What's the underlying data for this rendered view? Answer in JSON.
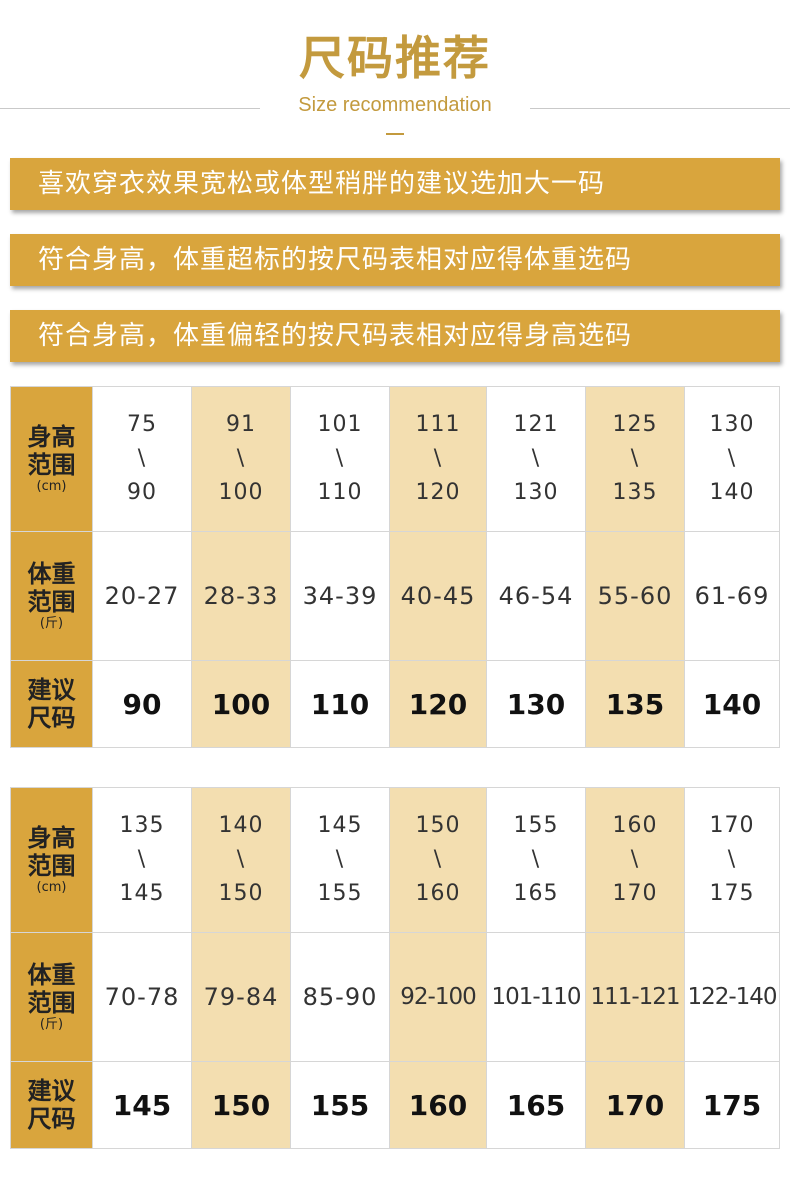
{
  "header": {
    "title": "尺码推荐",
    "subtitle": "Size recommendation"
  },
  "banners": [
    "喜欢穿衣效果宽松或体型稍胖的建议选加大一码",
    "符合身高，体重超标的按尺码表相对应得体重选码",
    "符合身高，体重偏轻的按尺码表相对应得身高选码"
  ],
  "row_headers": {
    "height_line1": "身高",
    "height_line2": "范围",
    "height_unit": "(cm)",
    "weight_line1": "体重",
    "weight_line2": "范围",
    "weight_unit": "(斤)",
    "size_line1": "建议",
    "size_line2": "尺码"
  },
  "separator": "\\",
  "tables": [
    {
      "columns": [
        {
          "h_min": "75",
          "h_max": "90",
          "weight": "20-27",
          "size": "90"
        },
        {
          "h_min": "91",
          "h_max": "100",
          "weight": "28-33",
          "size": "100"
        },
        {
          "h_min": "101",
          "h_max": "110",
          "weight": "34-39",
          "size": "110"
        },
        {
          "h_min": "111",
          "h_max": "120",
          "weight": "40-45",
          "size": "120"
        },
        {
          "h_min": "121",
          "h_max": "130",
          "weight": "46-54",
          "size": "130"
        },
        {
          "h_min": "125",
          "h_max": "135",
          "weight": "55-60",
          "size": "135"
        },
        {
          "h_min": "130",
          "h_max": "140",
          "weight": "61-69",
          "size": "140"
        }
      ]
    },
    {
      "columns": [
        {
          "h_min": "135",
          "h_max": "145",
          "weight": "70-78",
          "size": "145"
        },
        {
          "h_min": "140",
          "h_max": "150",
          "weight": "79-84",
          "size": "150"
        },
        {
          "h_min": "145",
          "h_max": "155",
          "weight": "85-90",
          "size": "155"
        },
        {
          "h_min": "150",
          "h_max": "160",
          "weight": "92-100",
          "size": "160"
        },
        {
          "h_min": "155",
          "h_max": "165",
          "weight": "101-110",
          "size": "165"
        },
        {
          "h_min": "160",
          "h_max": "170",
          "weight": "111-121",
          "size": "170"
        },
        {
          "h_min": "170",
          "h_max": "175",
          "weight": "122-140",
          "size": "175"
        }
      ]
    }
  ],
  "colors": {
    "gold": "#d9a53d",
    "light_gold": "#f3deb0",
    "title_gold": "#c39a3e"
  }
}
